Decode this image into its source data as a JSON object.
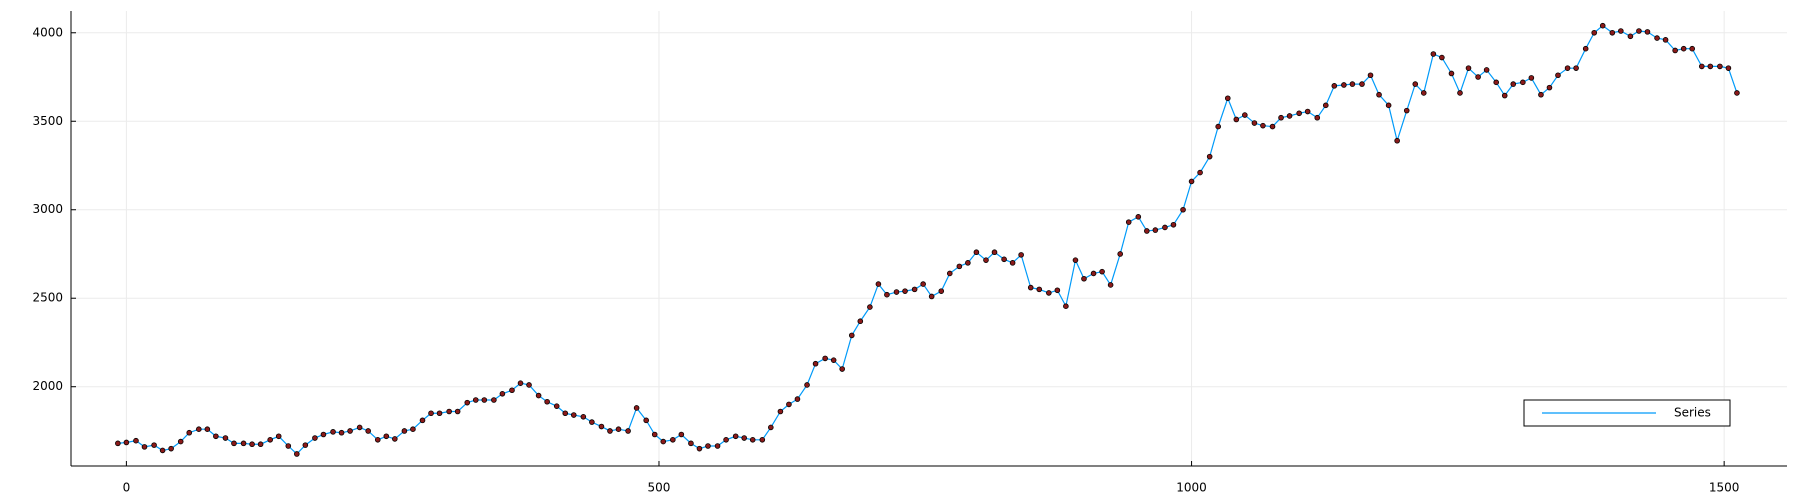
{
  "chart_data": {
    "type": "line",
    "x": [
      -8,
      0,
      9,
      17,
      26,
      34,
      42,
      51,
      59,
      68,
      76,
      84,
      93,
      101,
      110,
      118,
      126,
      135,
      143,
      152,
      160,
      168,
      177,
      185,
      194,
      202,
      210,
      219,
      227,
      236,
      244,
      252,
      261,
      269,
      278,
      286,
      294,
      303,
      311,
      320,
      328,
      336,
      345,
      353,
      362,
      370,
      378,
      387,
      395,
      404,
      412,
      420,
      429,
      437,
      446,
      454,
      462,
      471,
      479,
      488,
      496,
      504,
      513,
      521,
      530,
      538,
      546,
      555,
      563,
      572,
      580,
      588,
      597,
      605,
      614,
      622,
      630,
      639,
      647,
      656,
      664,
      672,
      681,
      689,
      698,
      706,
      714,
      723,
      731,
      740,
      748,
      756,
      765,
      773,
      782,
      790,
      798,
      807,
      815,
      824,
      832,
      840,
      849,
      857,
      866,
      874,
      882,
      891,
      899,
      908,
      916,
      924,
      933,
      941,
      950,
      958,
      966,
      975,
      983,
      992,
      1000,
      1008,
      1017,
      1025,
      1034,
      1042,
      1050,
      1059,
      1067,
      1076,
      1084,
      1092,
      1101,
      1109,
      1118,
      1126,
      1134,
      1143,
      1151,
      1160,
      1168,
      1176,
      1185,
      1193,
      1202,
      1210,
      1218,
      1227,
      1235,
      1244,
      1252,
      1260,
      1269,
      1277,
      1286,
      1294,
      1302,
      1311,
      1319,
      1328,
      1336,
      1344,
      1353,
      1361,
      1370,
      1378,
      1386,
      1395,
      1403,
      1412,
      1420,
      1428,
      1437,
      1445,
      1454,
      1462,
      1470,
      1479,
      1487,
      1496,
      1504,
      1512
    ],
    "series": [
      {
        "name": "Series",
        "color": "#009af9",
        "marker_color": "#8b1a1a",
        "values": [
          1680,
          1685,
          1695,
          1660,
          1670,
          1640,
          1650,
          1690,
          1740,
          1760,
          1760,
          1720,
          1710,
          1680,
          1680,
          1675,
          1675,
          1700,
          1720,
          1665,
          1620,
          1670,
          1710,
          1730,
          1745,
          1740,
          1750,
          1770,
          1750,
          1700,
          1720,
          1705,
          1750,
          1760,
          1810,
          1850,
          1850,
          1860,
          1860,
          1910,
          1925,
          1925,
          1925,
          1960,
          1980,
          2020,
          2010,
          1950,
          1915,
          1890,
          1850,
          1840,
          1830,
          1800,
          1775,
          1750,
          1760,
          1750,
          1880,
          1810,
          1730,
          1690,
          1700,
          1730,
          1680,
          1650,
          1665,
          1665,
          1700,
          1720,
          1710,
          1700,
          1700,
          1770,
          1860,
          1900,
          1930,
          2010,
          2130,
          2160,
          2150,
          2100,
          2290,
          2370,
          2450,
          2580,
          2520,
          2535,
          2540,
          2550,
          2580,
          2510,
          2540,
          2640,
          2680,
          2700,
          2760,
          2715,
          2760,
          2720,
          2700,
          2745,
          2560,
          2550,
          2530,
          2545,
          2455,
          2715,
          2610,
          2640,
          2650,
          2575,
          2750,
          2930,
          2960,
          2880,
          2885,
          2900,
          2915,
          3000,
          3160,
          3210,
          3300,
          3470,
          3630,
          3510,
          3535,
          3490,
          3475,
          3470,
          3520,
          3530,
          3545,
          3555,
          3520,
          3590,
          3700,
          3705,
          3710,
          3710,
          3760,
          3650,
          3590,
          3390,
          3560,
          3710,
          3660,
          3880,
          3860,
          3770,
          3660,
          3800,
          3750,
          3790,
          3720,
          3645,
          3710,
          3720,
          3745,
          3650,
          3690,
          3760,
          3800,
          3800,
          3910,
          4000,
          4040,
          4000,
          4010,
          3980,
          4010,
          4005,
          3970,
          3960,
          3900,
          3910,
          3910,
          3810,
          3810,
          3810,
          3800,
          3660
        ]
      }
    ],
    "xlim": [
      -52,
      1559
    ],
    "ylim": [
      1552,
      4123
    ],
    "xticks": [
      0,
      500,
      1000,
      1500
    ],
    "yticks": [
      2000,
      2500,
      3000,
      3500,
      4000
    ],
    "grid": true,
    "legend": "bottom-right"
  }
}
